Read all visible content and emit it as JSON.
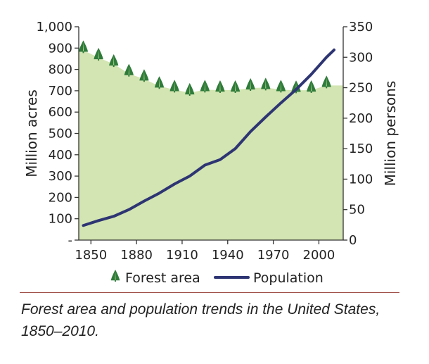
{
  "chart_data": {
    "type": "area",
    "title": "",
    "x": [
      1850,
      1860,
      1870,
      1880,
      1890,
      1900,
      1910,
      1920,
      1930,
      1940,
      1950,
      1960,
      1970,
      1980,
      1990,
      2000,
      2010
    ],
    "xlim": [
      1842,
      2016
    ],
    "xticks": [
      1850,
      1880,
      1910,
      1940,
      1970,
      2000
    ],
    "xtick_labels": [
      "1850",
      "1880",
      "1910",
      "1940",
      "1970",
      "2000"
    ],
    "series": [
      {
        "name": "Forest area",
        "axis": "left",
        "marker": "tree",
        "color": "#2f7b3a",
        "fill": "#d3e5b2",
        "x": [
          1845,
          1855,
          1865,
          1875,
          1885,
          1895,
          1905,
          1915,
          1925,
          1935,
          1945,
          1955,
          1965,
          1975,
          1985,
          1995,
          2005
        ],
        "values": [
          890,
          855,
          825,
          780,
          755,
          722,
          705,
          690,
          705,
          703,
          703,
          713,
          715,
          705,
          702,
          703,
          725
        ]
      },
      {
        "name": "Population",
        "axis": "right",
        "color": "#2e3573",
        "x": [
          1845,
          1855,
          1865,
          1875,
          1885,
          1895,
          1905,
          1915,
          1925,
          1935,
          1945,
          1955,
          1965,
          1975,
          1985,
          1995,
          2005,
          2010
        ],
        "values": [
          24,
          32,
          39,
          50,
          64,
          77,
          92,
          105,
          123,
          132,
          150,
          178,
          202,
          225,
          247,
          272,
          300,
          312
        ]
      }
    ],
    "y_left": {
      "label": "Million acres",
      "ylim": [
        0,
        1000
      ],
      "ticks": [
        0,
        100,
        200,
        300,
        400,
        500,
        600,
        700,
        800,
        900,
        1000
      ],
      "tick_labels": [
        "-",
        "100",
        "200",
        "300",
        "400",
        "500",
        "600",
        "700",
        "800",
        "900",
        "1,000"
      ]
    },
    "y_right": {
      "label": "Million persons",
      "ylim": [
        0,
        350
      ],
      "ticks": [
        0,
        50,
        100,
        150,
        200,
        250,
        300,
        350
      ],
      "tick_labels": [
        "0",
        "50",
        "100",
        "150",
        "200",
        "250",
        "300",
        "350"
      ]
    },
    "grid": false,
    "legend": {
      "position": "bottom",
      "entries": [
        "Forest area",
        "Population"
      ]
    }
  },
  "caption": "Forest area and population trends in the United States, 1850–2010.",
  "colors": {
    "area_fill": "#d3e5b2",
    "tree": "#2f7b3a",
    "tree_light": "#b8d890",
    "population_line": "#2e3573",
    "caption_rule": "#a0524a"
  }
}
